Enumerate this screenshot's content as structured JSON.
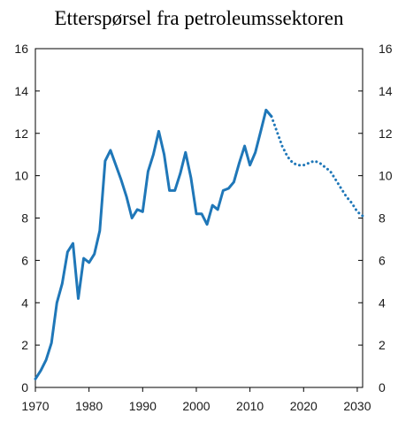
{
  "chart_data": {
    "type": "line",
    "title": "Etterspørsel fra petroleumssektoren",
    "xlabel": "",
    "ylabel": "",
    "xlim": [
      1970,
      2031
    ],
    "ylim": [
      0,
      16
    ],
    "x_ticks": [
      1970,
      1980,
      1990,
      2000,
      2010,
      2020,
      2030
    ],
    "y_ticks": [
      0,
      2,
      4,
      6,
      8,
      10,
      12,
      14,
      16
    ],
    "y_ticks_right": [
      0,
      2,
      4,
      6,
      8,
      10,
      12,
      14,
      16
    ],
    "grid": false,
    "colors": {
      "line": "#1f77b8"
    },
    "series": [
      {
        "style": "solid",
        "x": [
          1970,
          1971,
          1972,
          1973,
          1974,
          1975,
          1976,
          1977,
          1978,
          1979,
          1980,
          1981,
          1982,
          1983,
          1984,
          1985,
          1986,
          1987,
          1988,
          1989,
          1990,
          1991,
          1992,
          1993,
          1994,
          1995,
          1996,
          1997,
          1998,
          1999,
          2000,
          2001,
          2002,
          2003,
          2004,
          2005,
          2006,
          2007,
          2008,
          2009,
          2010,
          2011,
          2012,
          2013,
          2014
        ],
        "y": [
          0.4,
          0.8,
          1.3,
          2.1,
          4.0,
          4.9,
          6.4,
          6.8,
          4.2,
          6.1,
          5.9,
          6.3,
          7.4,
          10.7,
          11.2,
          10.5,
          9.8,
          9.0,
          8.0,
          8.4,
          8.3,
          10.2,
          11.0,
          12.1,
          11.0,
          9.3,
          9.3,
          10.1,
          11.1,
          9.9,
          8.2,
          8.2,
          7.7,
          8.6,
          8.4,
          9.3,
          9.4,
          9.7,
          10.6,
          11.4,
          10.5,
          11.1,
          12.1,
          13.1,
          12.8
        ]
      },
      {
        "style": "dotted",
        "x": [
          2014,
          2015,
          2016,
          2017,
          2018,
          2019,
          2020,
          2021,
          2022,
          2023,
          2024,
          2025,
          2026,
          2027,
          2028,
          2029,
          2030,
          2031
        ],
        "y": [
          12.8,
          12.1,
          11.4,
          10.9,
          10.6,
          10.5,
          10.5,
          10.6,
          10.7,
          10.6,
          10.4,
          10.2,
          9.8,
          9.4,
          9.0,
          8.7,
          8.3,
          8.1
        ]
      }
    ]
  }
}
